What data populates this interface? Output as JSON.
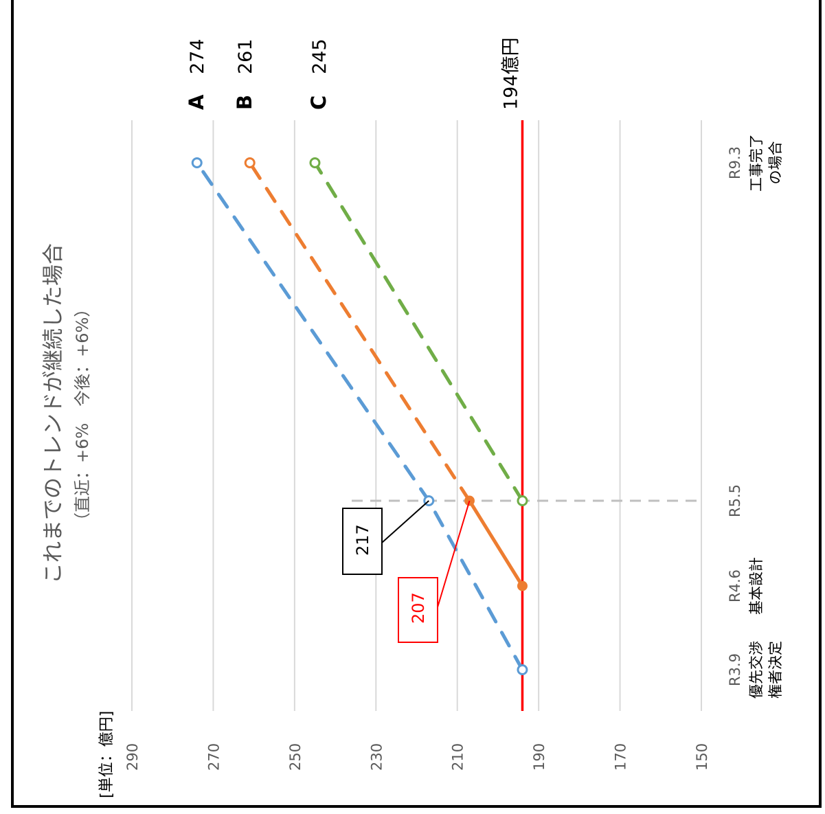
{
  "chart_data": {
    "type": "line",
    "title": "これまでのトレンドが継続した場合",
    "subtitle": "（直近：+6%　今後：+6%）",
    "unit_label": "[単位：億円]",
    "value_axis": {
      "min": 150,
      "max": 290,
      "ticks": [
        150,
        170,
        190,
        210,
        230,
        250,
        270,
        290
      ]
    },
    "categories": [
      {
        "key": "R3.9",
        "label": "R3.9",
        "sub": [
          "優先交渉",
          "権者決定"
        ]
      },
      {
        "key": "R4.6",
        "label": "R4.6",
        "sub": [
          "基本設計"
        ]
      },
      {
        "key": "R5.5",
        "label": "R5.5",
        "sub": []
      },
      {
        "key": "R9.3",
        "label": "R9.3",
        "sub": [
          "工事完了",
          "の場合"
        ]
      }
    ],
    "series": [
      {
        "name": "A",
        "color": "#5b9bd5",
        "actual": [],
        "projection": [
          {
            "x": "R3.9",
            "y": 194
          },
          {
            "x": "R5.5",
            "y": 217
          },
          {
            "x": "R9.3",
            "y": 274
          }
        ],
        "end_label": "274"
      },
      {
        "name": "B",
        "color": "#ed7d31",
        "actual": [
          {
            "x": "R4.6",
            "y": 194
          },
          {
            "x": "R5.5",
            "y": 207
          }
        ],
        "projection": [
          {
            "x": "R5.5",
            "y": 207
          },
          {
            "x": "R9.3",
            "y": 261
          }
        ],
        "end_label": "261"
      },
      {
        "name": "C",
        "color": "#70ad47",
        "actual": [],
        "projection": [
          {
            "x": "R5.5",
            "y": 194
          },
          {
            "x": "R9.3",
            "y": 245
          }
        ],
        "end_label": "245"
      }
    ],
    "target_line": {
      "value": 194,
      "label": "194億円",
      "color": "#ff0000"
    },
    "callouts": [
      {
        "text": "217",
        "color": "#000000",
        "x": "R5.5",
        "y": 217
      },
      {
        "text": "207",
        "color": "#ff0000",
        "x": "R5.5",
        "y": 207
      }
    ],
    "grid": true
  }
}
